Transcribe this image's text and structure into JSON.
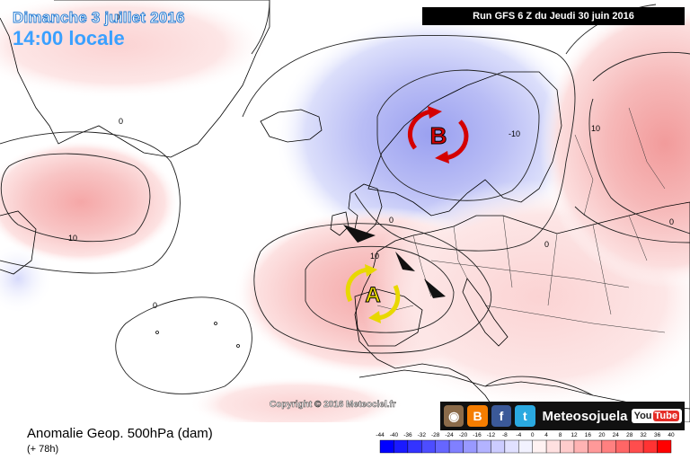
{
  "title": {
    "date": "Dimanche 3 juillet 2016",
    "time": "14:00 locale"
  },
  "run_info": "Run GFS 6 Z du Jeudi 30 juin 2016",
  "copyright": "Copyright © 2016 Meteociel.fr",
  "branding": {
    "name": "Meteosojuela",
    "youtube_you": "You",
    "youtube_tube": "Tube",
    "icons": [
      "camera-icon",
      "blogger-icon",
      "facebook-icon",
      "twitter-icon"
    ]
  },
  "product": {
    "name": "Anomalie Geop. 500hPa (dam)",
    "lead": "(+ 78h)"
  },
  "legend": {
    "ticks": [
      "-44",
      "-40",
      "-36",
      "-32",
      "-28",
      "-24",
      "-20",
      "-16",
      "-12",
      "-8",
      "-4",
      "0",
      "4",
      "8",
      "12",
      "16",
      "20",
      "24",
      "28",
      "32",
      "36",
      "40"
    ],
    "colors": [
      "#0000ff",
      "#1a1aff",
      "#3333ff",
      "#4d4dff",
      "#6666ff",
      "#8080ff",
      "#9999ff",
      "#b3b3ff",
      "#ccccff",
      "#e0e0ff",
      "#f2f2ff",
      "#fff2f2",
      "#ffe0e0",
      "#ffcccc",
      "#ffb3b3",
      "#ff9999",
      "#ff8080",
      "#ff6666",
      "#ff4d4d",
      "#ff3333",
      "#ff0000"
    ]
  },
  "pressure_centers": [
    {
      "letter": "B",
      "label": "low",
      "color": "#d40000"
    },
    {
      "letter": "A",
      "label": "high",
      "color": "#e8d800"
    }
  ],
  "contour_labels": [
    "0",
    "10",
    "-10"
  ]
}
